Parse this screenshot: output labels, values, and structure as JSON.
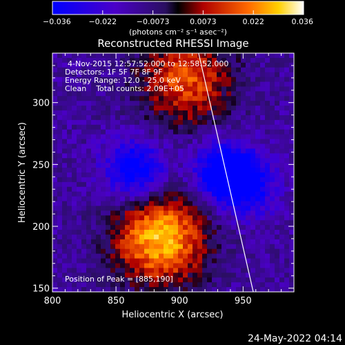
{
  "chart_data": {
    "type": "heatmap",
    "title": "Reconstructed RHESSI Image",
    "xlabel": "Heliocentric X (arcsec)",
    "ylabel": "Heliocentric Y (arcsec)",
    "xlim": [
      800,
      990
    ],
    "ylim": [
      147,
      340
    ],
    "x_ticks": [
      "800",
      "850",
      "900",
      "950"
    ],
    "y_ticks": [
      "150",
      "200",
      "250",
      "300"
    ],
    "colorbar": {
      "range": [
        -0.036,
        0.036
      ],
      "tick_labels": [
        "−0.036",
        "−0.022",
        "−0.0073",
        "0.0073",
        "0.022",
        "0.036"
      ],
      "units_text": "(photons cm⁻² s⁻¹ asec⁻²)"
    },
    "annotations": {
      "time": "4-Nov-2015 12:57:52.000 to 12:58:52.000",
      "detectors": "Detectors: 1F 5F 7F 8F 9F",
      "energy": "Energy Range: 12.0 - 25.0 keV",
      "method": "Clean    Total counts: 2.09E+05",
      "peak": "Position of Peak = [885,190]"
    },
    "sources": [
      {
        "x": 885,
        "y": 190,
        "value": 0.036
      },
      {
        "x": 865,
        "y": 245,
        "value": -0.036
      },
      {
        "x": 935,
        "y": 245,
        "value": -0.035
      },
      {
        "x": 952,
        "y": 232,
        "value": -0.03
      },
      {
        "x": 905,
        "y": 318,
        "value": 0.024
      }
    ],
    "limb_line": [
      [
        915,
        340
      ],
      [
        958,
        147
      ]
    ],
    "grid": false,
    "colormap": "blue-purple-red-yellow-white"
  },
  "date_stamp": "24-May-2022 04:14"
}
